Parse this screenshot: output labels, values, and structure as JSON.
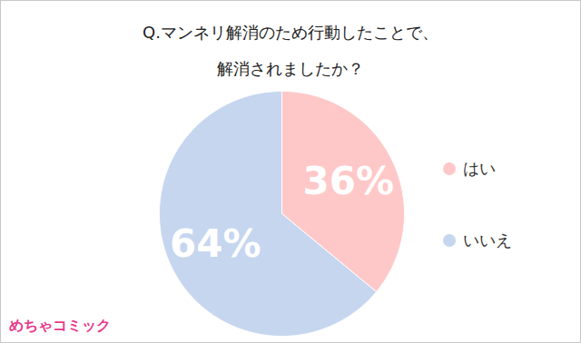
{
  "chart_data": {
    "type": "pie",
    "title": "Q.マンネリ解消のため行動したことで、\n解消されましたか？",
    "categories": [
      "はい",
      "いいえ"
    ],
    "values": [
      36,
      64
    ],
    "value_labels": [
      "36%",
      "64%"
    ],
    "colors": [
      "#ffc8c8",
      "#c6d6ef"
    ],
    "data_labels": true,
    "legend": "right",
    "annotations": [
      "めちゃコミック"
    ]
  }
}
